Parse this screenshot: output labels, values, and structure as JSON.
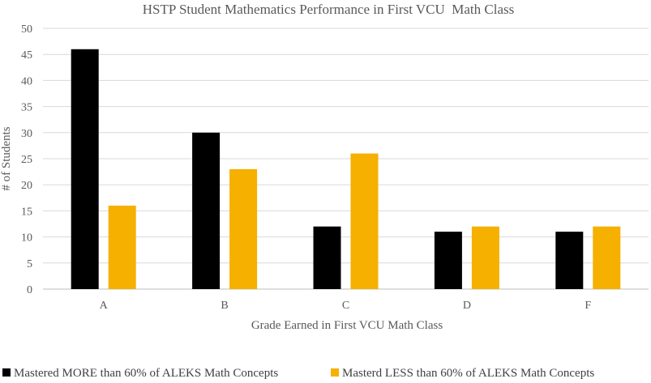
{
  "chart_data": {
    "type": "bar",
    "title": "HSTP Student Mathematics Performance in First VCU  Math Class",
    "xlabel": "Grade Earned in First VCU Math Class",
    "ylabel": "# of Students",
    "categories": [
      "A",
      "B",
      "C",
      "D",
      "F"
    ],
    "ylim": [
      0,
      50
    ],
    "yticks": [
      0,
      5,
      10,
      15,
      20,
      25,
      30,
      35,
      40,
      45,
      50
    ],
    "grid": true,
    "legend_position": "bottom",
    "series": [
      {
        "name": "Mastered MORE than 60% of ALEKS Math Concepts",
        "color": "#000000",
        "values": [
          46,
          30,
          12,
          11,
          11
        ]
      },
      {
        "name": "Masterd LESS than 60% of ALEKS Math Concepts",
        "color": "#f5b000",
        "values": [
          16,
          23,
          26,
          12,
          12
        ]
      }
    ]
  }
}
